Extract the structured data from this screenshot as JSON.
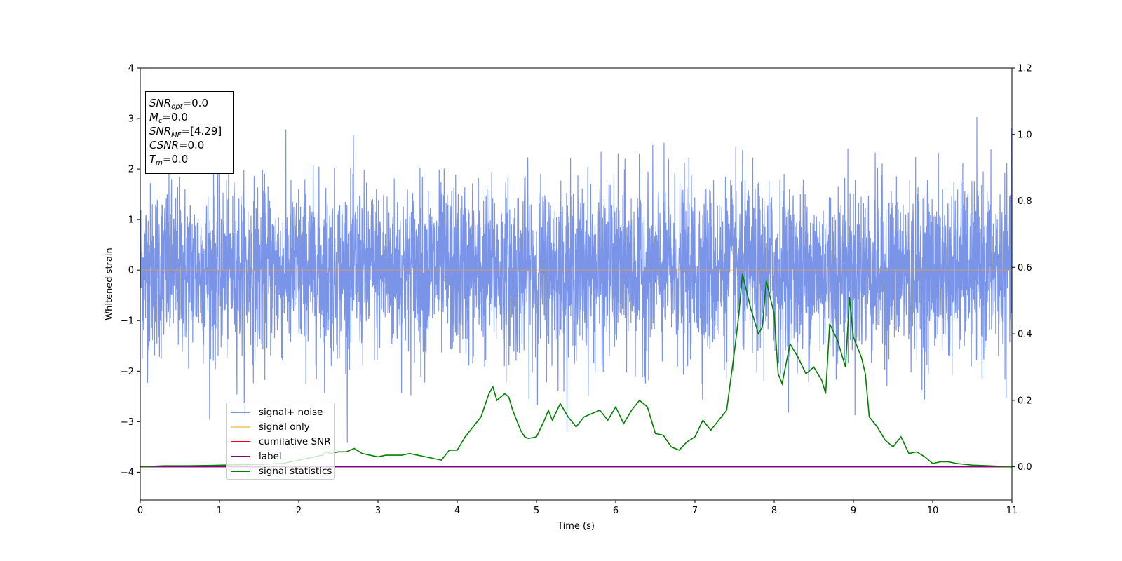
{
  "chart_data": {
    "type": "line",
    "title": "",
    "xlabel": "Time (s)",
    "ylabel": "Whitened strain",
    "xlim": [
      0,
      11
    ],
    "ylim": [
      -4.55,
      4.0
    ],
    "y2lim": [
      -0.1,
      1.2
    ],
    "xticks": [
      "0",
      "1",
      "2",
      "3",
      "4",
      "5",
      "6",
      "7",
      "8",
      "9",
      "10",
      "11"
    ],
    "yticks": [
      "4",
      "3",
      "2",
      "1",
      "0",
      "−1",
      "−2",
      "−3",
      "−4"
    ],
    "y2ticks": [
      "1.2",
      "1.0",
      "0.8",
      "0.6",
      "0.4",
      "0.2",
      "0.0"
    ],
    "annotation": {
      "lines": [
        {
          "sym": "SNR",
          "sub": "opt",
          "value": "=0.0"
        },
        {
          "sym": "M",
          "sub": "c",
          "value": "=0.0"
        },
        {
          "sym": "SNR",
          "sub": "MF",
          "value": "=[4.29]"
        },
        {
          "sym": "CSNR",
          "sub": "",
          "value": "=0.0"
        },
        {
          "sym": "T",
          "sub": "m",
          "value": "=0.0"
        }
      ]
    },
    "legend_position": "lower-left",
    "series": [
      {
        "name": "signal+ noise",
        "color": "#7a94e8",
        "axis": "left",
        "kind": "noise",
        "approx_std": 0.85,
        "min": -4.15,
        "max": 3.62
      },
      {
        "name": "signal only",
        "color": "#f5a623",
        "axis": "left",
        "x": [
          0,
          11
        ],
        "y": [
          0,
          0
        ]
      },
      {
        "name": "cumilative SNR",
        "color": "#ff0000",
        "axis": "right",
        "x": [
          0,
          11
        ],
        "y": [
          0,
          0
        ]
      },
      {
        "name": "label",
        "color": "#800080",
        "axis": "right",
        "x": [
          0,
          11
        ],
        "y": [
          0,
          0
        ]
      },
      {
        "name": "signal statistics",
        "color": "#008000",
        "axis": "right",
        "x": [
          0,
          0.3,
          0.6,
          0.9,
          1.2,
          1.5,
          1.8,
          2.0,
          2.1,
          2.2,
          2.3,
          2.35,
          2.4,
          2.5,
          2.6,
          2.7,
          2.8,
          2.9,
          3.0,
          3.1,
          3.2,
          3.3,
          3.4,
          3.5,
          3.6,
          3.7,
          3.8,
          3.9,
          4.0,
          4.1,
          4.2,
          4.3,
          4.4,
          4.45,
          4.5,
          4.55,
          4.6,
          4.65,
          4.7,
          4.8,
          4.85,
          4.9,
          5.0,
          5.1,
          5.15,
          5.2,
          5.3,
          5.4,
          5.5,
          5.6,
          5.7,
          5.8,
          5.9,
          6.0,
          6.1,
          6.2,
          6.3,
          6.4,
          6.5,
          6.6,
          6.7,
          6.8,
          6.9,
          7.0,
          7.1,
          7.2,
          7.3,
          7.4,
          7.5,
          7.55,
          7.6,
          7.7,
          7.8,
          7.85,
          7.9,
          8.0,
          8.05,
          8.1,
          8.2,
          8.3,
          8.4,
          8.5,
          8.6,
          8.65,
          8.7,
          8.8,
          8.9,
          8.95,
          9.0,
          9.1,
          9.15,
          9.2,
          9.3,
          9.4,
          9.5,
          9.6,
          9.7,
          9.8,
          9.9,
          10.0,
          10.1,
          10.2,
          10.3,
          10.5,
          10.7,
          11.0
        ],
        "y": [
          0.0,
          0.003,
          0.003,
          0.004,
          0.006,
          0.007,
          0.01,
          0.02,
          0.025,
          0.03,
          0.035,
          0.045,
          0.04,
          0.045,
          0.045,
          0.055,
          0.04,
          0.035,
          0.03,
          0.035,
          0.035,
          0.035,
          0.04,
          0.035,
          0.03,
          0.025,
          0.02,
          0.05,
          0.05,
          0.09,
          0.12,
          0.15,
          0.22,
          0.24,
          0.2,
          0.21,
          0.22,
          0.21,
          0.17,
          0.11,
          0.09,
          0.085,
          0.09,
          0.14,
          0.17,
          0.14,
          0.19,
          0.15,
          0.12,
          0.15,
          0.16,
          0.17,
          0.14,
          0.18,
          0.13,
          0.17,
          0.2,
          0.18,
          0.1,
          0.095,
          0.06,
          0.05,
          0.075,
          0.09,
          0.14,
          0.11,
          0.14,
          0.17,
          0.35,
          0.45,
          0.58,
          0.48,
          0.4,
          0.42,
          0.56,
          0.46,
          0.28,
          0.25,
          0.37,
          0.33,
          0.28,
          0.3,
          0.26,
          0.22,
          0.43,
          0.38,
          0.3,
          0.51,
          0.39,
          0.33,
          0.28,
          0.15,
          0.12,
          0.08,
          0.06,
          0.09,
          0.04,
          0.045,
          0.03,
          0.01,
          0.015,
          0.015,
          0.01,
          0.005,
          0.003,
          0.0
        ]
      }
    ]
  }
}
